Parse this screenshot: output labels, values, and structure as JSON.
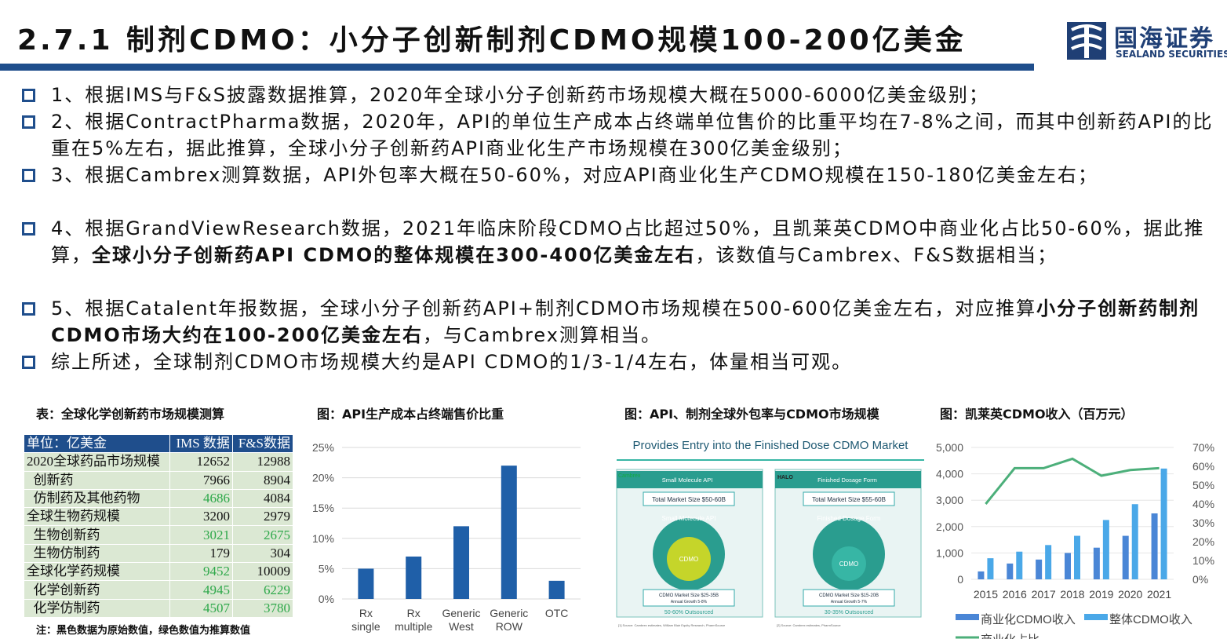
{
  "header": {
    "title": "2.7.1 制剂CDMO：小分子创新制剂CDMO规模100-200亿美金",
    "logo_cn": "国海证券",
    "logo_en": "SEALAND SECURITIES",
    "bar_color": "#1f4e8c"
  },
  "bullets": [
    {
      "segments": [
        {
          "t": "1、根据IMS与F&S披露数据推算，2020年全球小分子创新药市场规模大概在5000-6000亿美金级别；",
          "b": false
        }
      ]
    },
    {
      "segments": [
        {
          "t": "2、根据ContractPharma数据，2020年，API的单位生产成本占终端单位售价的比重平均在7-8%之间，而其中创新药API的比重在5%左右，据此推算，全球小分子创新药API商业化生产市场规模在300亿美金级别；",
          "b": false
        }
      ]
    },
    {
      "segments": [
        {
          "t": "3、根据Cambrex测算数据，API外包率大概在50-60%，对应API商业化生产CDMO规模在150-180亿美金左右；",
          "b": false
        }
      ]
    },
    {
      "segments": [
        {
          "t": "4、根据GrandViewResearch数据，2021年临床阶段CDMO占比超过50%，且凯莱英CDMO中商业化占比50-60%，据此推算，",
          "b": false
        },
        {
          "t": "全球小分子创新药API CDMO的整体规模在300-400亿美金左右",
          "b": true
        },
        {
          "t": "，该数值与Cambrex、F&S数据相当；",
          "b": false
        }
      ]
    },
    {
      "segments": [
        {
          "t": "5、根据Catalent年报数据，全球小分子创新药API+制剂CDMO市场规模在500-600亿美金左右，对应推算",
          "b": false
        },
        {
          "t": "小分子创新药制剂CDMO市场大约在100-200亿美金左右",
          "b": true
        },
        {
          "t": "，与Cambrex测算相当。",
          "b": false
        }
      ]
    },
    {
      "segments": [
        {
          "t": "综上所述，全球制剂CDMO市场规模大约是API CDMO的1/3-1/4左右，体量相当可观。",
          "b": false
        }
      ]
    }
  ],
  "table1": {
    "caption": "表：全球化学创新药市场规模测算",
    "headers": [
      "单位：亿美金",
      "IMS 数据",
      "F&S数据"
    ],
    "rows": [
      {
        "label": "2020全球药品市场规模",
        "ims": "12652",
        "fs": "12988",
        "ims_green": false,
        "fs_green": false
      },
      {
        "label": "创新药",
        "ims": "7966",
        "fs": "8904",
        "ims_green": false,
        "fs_green": false
      },
      {
        "label": "仿制药及其他药物",
        "ims": "4686",
        "fs": "4084",
        "ims_green": true,
        "fs_green": false
      },
      {
        "label": "全球生物药规模",
        "ims": "3200",
        "fs": "2979",
        "ims_green": false,
        "fs_green": false
      },
      {
        "label": "生物创新药",
        "ims": "3021",
        "fs": "2675",
        "ims_green": true,
        "fs_green": true
      },
      {
        "label": "生物仿制药",
        "ims": "179",
        "fs": "304",
        "ims_green": false,
        "fs_green": false
      },
      {
        "label": "全球化学药规模",
        "ims": "9452",
        "fs": "10009",
        "ims_green": true,
        "fs_green": false
      },
      {
        "label": "化学创新药",
        "ims": "4945",
        "fs": "6229",
        "ims_green": true,
        "fs_green": true
      },
      {
        "label": "化学仿制药",
        "ims": "4507",
        "fs": "3780",
        "ims_green": true,
        "fs_green": true
      }
    ],
    "note": "注：黑色数据为原始数值，绿色数值为推算数值",
    "green_color": "#2ea84a"
  },
  "chart_data": [
    {
      "type": "bar",
      "caption": "图：API生产成本占终端售价比重",
      "categories": [
        "Rx single",
        "Rx multiple",
        "Generic West",
        "Generic ROW",
        "OTC"
      ],
      "values": [
        5,
        7,
        12,
        22,
        3
      ],
      "yticks": [
        "0%",
        "5%",
        "10%",
        "15%",
        "20%",
        "25%"
      ],
      "ylim": [
        0,
        25
      ],
      "color": "#1f5fa8"
    },
    {
      "type": "bar",
      "caption": "图：凯莱英CDMO收入（百万元）",
      "categories": [
        "2015",
        "2016",
        "2017",
        "2018",
        "2019",
        "2020",
        "2021"
      ],
      "series": [
        {
          "name": "商业化CDMO收入",
          "values": [
            300,
            600,
            750,
            1000,
            1200,
            1650,
            2500
          ],
          "color": "#4a86d6"
        },
        {
          "name": "整体CDMO收入",
          "values": [
            800,
            1050,
            1300,
            1650,
            2250,
            2850,
            4200
          ],
          "color": "#4aa8e8"
        }
      ],
      "line": {
        "name": "商业化占比",
        "values": [
          40,
          59,
          59,
          64,
          55,
          58,
          59
        ],
        "color": "#4caf7a"
      },
      "yticks_left": [
        "0",
        "1,000",
        "2,000",
        "3,000",
        "4,000",
        "5,000"
      ],
      "yticks_right": [
        "0%",
        "10%",
        "20%",
        "30%",
        "40%",
        "50%",
        "60%",
        "70%"
      ],
      "ylim_left": [
        0,
        5000
      ],
      "ylim_right": [
        0,
        70
      ]
    }
  ],
  "figure3": {
    "caption": "图：API、制剂全球外包率与CDMO市场规模",
    "title": "Provides Entry into the Finished Dose CDMO Market",
    "left": {
      "brand": "Cambrex",
      "header": "Small Molecule API",
      "market": "Total Market Size $50-60B",
      "circle": "Small Molecule API",
      "inner": "CDMO",
      "cdmo_size": "CDMO Market Size $25-35B",
      "growth": "Annual Growth 5-8%",
      "outsourced": "50-60% Outsourced",
      "source": "[1] Source: Cambrex estimates, William Blair Equity Research, PharmSource"
    },
    "right": {
      "brand": "HALO",
      "header": "Finished Dosage Form",
      "market": "Total Market Size $55-60B",
      "circle": "Finished Dosage Form",
      "inner": "CDMO",
      "cdmo_size": "CDMO Market Size $15-20B",
      "growth": "Annual Growth 5-7%",
      "outsourced": "30-35% Outsourced",
      "source": "[2] Source: Cambrex estimates, PharmSource"
    }
  }
}
